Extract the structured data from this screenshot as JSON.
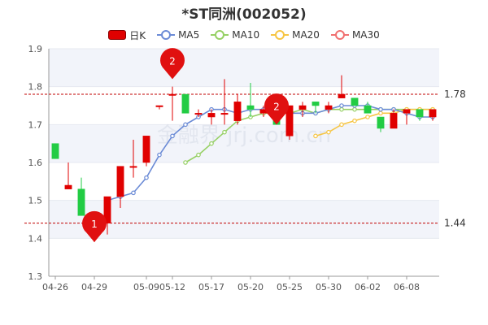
{
  "chart_data": {
    "type": "candlestick",
    "title": "*ST同洲(002052)",
    "legend": [
      {
        "label": "日K",
        "color": "#e00000"
      },
      {
        "label": "MA5",
        "color": "#6b8bd6"
      },
      {
        "label": "MA10",
        "color": "#96d064"
      },
      {
        "label": "MA20",
        "color": "#f6c543"
      },
      {
        "label": "MA30",
        "color": "#f07070"
      }
    ],
    "ylim": [
      1.3,
      1.9
    ],
    "yticks": [
      "1.3",
      "1.4",
      "1.5",
      "1.6",
      "1.7",
      "1.8",
      "1.9"
    ],
    "xticks": [
      "04-26",
      "04-29",
      "05-09",
      "05-12",
      "05-17",
      "05-20",
      "05-25",
      "05-30",
      "06-02",
      "06-08"
    ],
    "colors": {
      "up": "#e00000",
      "down": "#22cc44",
      "ma5": "#6b8bd6",
      "ma10": "#96d064",
      "ma20": "#f6c543",
      "grid_band": "#f2f4fa",
      "guide": "#c00000"
    },
    "candles": [
      {
        "date": "04-26",
        "open": 1.65,
        "close": 1.61,
        "high": 1.65,
        "low": 1.61
      },
      {
        "date": "04-27",
        "open": 1.53,
        "close": 1.54,
        "high": 1.6,
        "low": 1.53
      },
      {
        "date": "04-28",
        "open": 1.53,
        "close": 1.46,
        "high": 1.56,
        "low": 1.46
      },
      {
        "date": "04-29",
        "open": 1.45,
        "close": 1.45,
        "high": 1.45,
        "low": 1.39
      },
      {
        "date": "05-06",
        "open": 1.44,
        "close": 1.51,
        "high": 1.51,
        "low": 1.41
      },
      {
        "date": "05-07",
        "open": 1.51,
        "close": 1.59,
        "high": 1.59,
        "low": 1.48
      },
      {
        "date": "05-08",
        "open": 1.59,
        "close": 1.59,
        "high": 1.66,
        "low": 1.56
      },
      {
        "date": "05-09",
        "open": 1.6,
        "close": 1.67,
        "high": 1.67,
        "low": 1.59
      },
      {
        "date": "05-10",
        "open": 1.75,
        "close": 1.75,
        "high": 1.75,
        "low": 1.74
      },
      {
        "date": "05-12",
        "open": 1.78,
        "close": 1.78,
        "high": 1.8,
        "low": 1.71
      },
      {
        "date": "05-13",
        "open": 1.78,
        "close": 1.73,
        "high": 1.78,
        "low": 1.73
      },
      {
        "date": "05-16",
        "open": 1.73,
        "close": 1.73,
        "high": 1.74,
        "low": 1.72
      },
      {
        "date": "05-17",
        "open": 1.72,
        "close": 1.73,
        "high": 1.74,
        "low": 1.7
      },
      {
        "date": "05-18",
        "open": 1.73,
        "close": 1.73,
        "high": 1.82,
        "low": 1.7
      },
      {
        "date": "05-19",
        "open": 1.71,
        "close": 1.76,
        "high": 1.78,
        "low": 1.7
      },
      {
        "date": "05-20",
        "open": 1.75,
        "close": 1.74,
        "high": 1.81,
        "low": 1.72
      },
      {
        "date": "05-23",
        "open": 1.73,
        "close": 1.74,
        "high": 1.75,
        "low": 1.72
      },
      {
        "date": "05-24",
        "open": 1.72,
        "close": 1.7,
        "high": 1.74,
        "low": 1.7
      },
      {
        "date": "05-25",
        "open": 1.67,
        "close": 1.75,
        "high": 1.75,
        "low": 1.66
      },
      {
        "date": "05-26",
        "open": 1.74,
        "close": 1.75,
        "high": 1.76,
        "low": 1.72
      },
      {
        "date": "05-27",
        "open": 1.76,
        "close": 1.75,
        "high": 1.76,
        "low": 1.73
      },
      {
        "date": "05-30",
        "open": 1.74,
        "close": 1.75,
        "high": 1.76,
        "low": 1.73
      },
      {
        "date": "05-31",
        "open": 1.77,
        "close": 1.78,
        "high": 1.83,
        "low": 1.77
      },
      {
        "date": "06-01",
        "open": 1.77,
        "close": 1.75,
        "high": 1.77,
        "low": 1.75
      },
      {
        "date": "06-02",
        "open": 1.75,
        "close": 1.73,
        "high": 1.76,
        "low": 1.73
      },
      {
        "date": "06-06",
        "open": 1.72,
        "close": 1.69,
        "high": 1.72,
        "low": 1.68
      },
      {
        "date": "06-07",
        "open": 1.69,
        "close": 1.73,
        "high": 1.74,
        "low": 1.69
      },
      {
        "date": "06-08",
        "open": 1.73,
        "close": 1.74,
        "high": 1.74,
        "low": 1.7
      },
      {
        "date": "06-09",
        "open": 1.74,
        "close": 1.72,
        "high": 1.74,
        "low": 1.71
      },
      {
        "date": "06-10",
        "open": 1.72,
        "close": 1.74,
        "high": 1.74,
        "low": 1.71
      }
    ],
    "ma5": [
      null,
      null,
      null,
      null,
      1.5,
      1.51,
      1.52,
      1.56,
      1.62,
      1.67,
      1.7,
      1.72,
      1.74,
      1.74,
      1.73,
      1.74,
      1.74,
      1.74,
      1.73,
      1.73,
      1.73,
      1.74,
      1.75,
      1.75,
      1.75,
      1.74,
      1.74,
      1.73,
      1.72,
      1.72
    ],
    "ma10": [
      null,
      null,
      null,
      null,
      null,
      null,
      null,
      null,
      null,
      null,
      1.6,
      1.62,
      1.65,
      1.68,
      1.71,
      1.72,
      1.73,
      1.73,
      1.73,
      1.74,
      1.73,
      1.74,
      1.74,
      1.74,
      1.74,
      1.74,
      1.74,
      1.74,
      1.74,
      1.74
    ],
    "ma20": [
      null,
      null,
      null,
      null,
      null,
      null,
      null,
      null,
      null,
      null,
      null,
      null,
      null,
      null,
      null,
      null,
      null,
      null,
      null,
      null,
      1.67,
      1.68,
      1.7,
      1.71,
      1.72,
      1.73,
      1.73,
      1.74,
      1.74,
      1.74
    ],
    "hlines": [
      {
        "value": 1.78,
        "label": "1.78"
      },
      {
        "value": 1.44,
        "label": "1.44"
      }
    ],
    "markers": [
      {
        "label": "1",
        "index": 3,
        "value": 1.39
      },
      {
        "label": "2",
        "index": 9,
        "value": 1.82
      },
      {
        "label": "2",
        "index": 17,
        "value": 1.7
      }
    ],
    "watermark": "金融界 jrj.com.cn"
  }
}
